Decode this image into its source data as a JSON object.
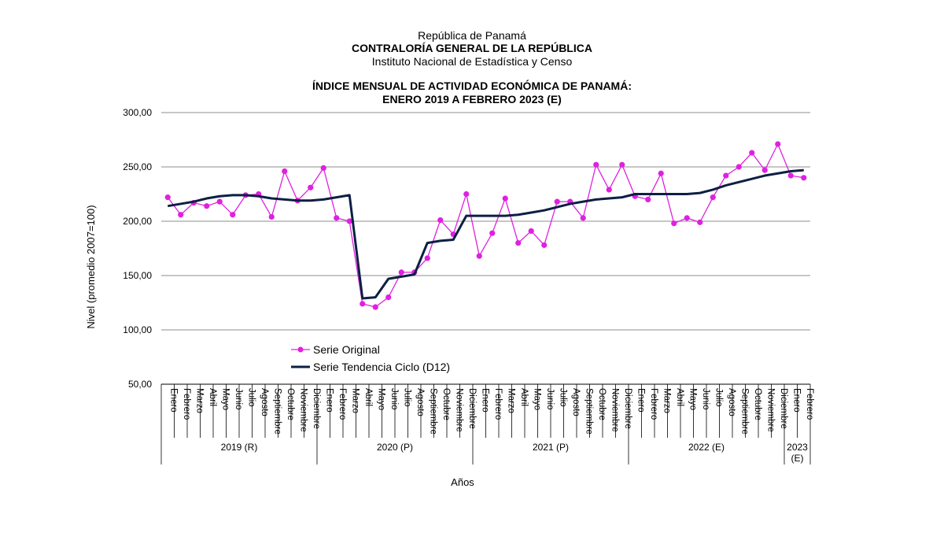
{
  "header": {
    "line1": "República de Panamá",
    "line2": "CONTRALORÍA GENERAL DE LA REPÚBLICA",
    "line3": "Instituto Nacional de Estadística y Censo"
  },
  "chart_data": {
    "type": "line",
    "title": "ÍNDICE MENSUAL DE ACTIVIDAD ECONÓMICA DE PANAMÁ:",
    "subtitle": "ENERO 2019 A FEBRERO 2023 (E)",
    "ylabel": "Nivel (promedio 2007=100)",
    "xlabel": "Años",
    "ylim": [
      50,
      300
    ],
    "yticks": [
      "50,00",
      "100,00",
      "150,00",
      "200,00",
      "250,00",
      "300,00"
    ],
    "grid": true,
    "legend_position": "inside, lower-left",
    "categories": [
      "Enero",
      "Febrero",
      "Marzo",
      "Abril",
      "Mayo",
      "Junio",
      "Julio",
      "Agosto",
      "Septiembre",
      "Octubre",
      "Noviembre",
      "Diciembre",
      "Enero",
      "Febrero",
      "Marzo",
      "Abril",
      "Mayo",
      "Junio",
      "Julio",
      "Agosto",
      "Septiembre",
      "Octubre",
      "Noviembre",
      "Diciembre",
      "Enero",
      "Febrero",
      "Marzo",
      "Abril",
      "Mayo",
      "Junio",
      "Julio",
      "Agosto",
      "Septiembre",
      "Octubre",
      "Noviembre",
      "Diciembre",
      "Enero",
      "Febrero",
      "Marzo",
      "Abril",
      "Mayo",
      "Junio",
      "Julio",
      "Agosto",
      "Septiembre",
      "Octubre",
      "Noviembre",
      "Diciembre",
      "Enero",
      "Febrero"
    ],
    "years": [
      {
        "label": "2019 (R)",
        "months": 12
      },
      {
        "label": "2020 (P)",
        "months": 12
      },
      {
        "label": "2021 (P)",
        "months": 12
      },
      {
        "label": "2022 (E)",
        "months": 12
      },
      {
        "label": "2023 (E)",
        "months": 2
      }
    ],
    "series": [
      {
        "name": "Serie Original",
        "color": "#e020e0",
        "marker": "circle",
        "values": [
          222,
          206,
          217,
          214,
          218,
          206,
          224,
          225,
          204,
          246,
          219,
          231,
          249,
          203,
          200,
          124,
          121,
          130,
          153,
          153,
          166,
          201,
          188,
          225,
          168,
          189,
          221,
          180,
          191,
          178,
          218,
          218,
          203,
          252,
          229,
          252,
          223,
          220,
          244,
          198,
          203,
          199,
          222,
          242,
          250,
          263,
          247,
          271,
          242,
          240
        ]
      },
      {
        "name": "Serie Tendencia Ciclo (D12)",
        "color": "#0d1f44",
        "marker": "none",
        "values": [
          214,
          216,
          218,
          221,
          223,
          224,
          224,
          223,
          221,
          220,
          219,
          219,
          220,
          222,
          224,
          129,
          130,
          147,
          149,
          151,
          180,
          182,
          183,
          205,
          205,
          205,
          205,
          206,
          208,
          210,
          213,
          216,
          218,
          220,
          221,
          222,
          225,
          225,
          225,
          225,
          225,
          226,
          229,
          233,
          236,
          239,
          242,
          244,
          246,
          247
        ]
      }
    ]
  }
}
